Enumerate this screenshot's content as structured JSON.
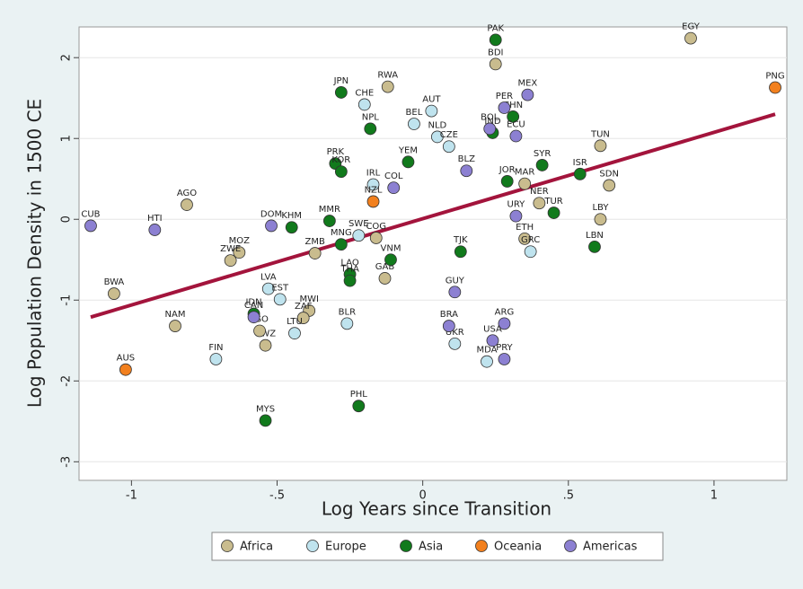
{
  "chart_data": {
    "type": "scatter",
    "x_label": "Log Years since Transition",
    "y_label": "Log Population Density in 1500 CE",
    "xlim": [
      -1.18,
      1.25
    ],
    "ylim": [
      -3.23,
      2.38
    ],
    "xticks": [
      -1,
      {
        "value": -0.5,
        "label": "-.5"
      },
      0,
      {
        "value": 0.5,
        "label": ".5"
      },
      1
    ],
    "yticks": [
      -3,
      -2,
      -1,
      0,
      1,
      2
    ],
    "grid": true,
    "legend": "bottom",
    "series": [
      {
        "name": "Africa",
        "color": "#c9bc8e",
        "labels": [
          "EGY",
          "BDI",
          "RWA",
          "TUN",
          "SDN",
          "LBY",
          "AGO",
          "MOZ",
          "ZWE",
          "BWA",
          "NAM",
          "MWI",
          "ZAF",
          "SWZ",
          "LSO",
          "GAB",
          "MAR",
          "ETH",
          "NER",
          "ZMB",
          "COG"
        ],
        "x": [
          0.92,
          0.25,
          -0.12,
          0.61,
          0.64,
          0.61,
          -0.81,
          -0.63,
          -0.66,
          -1.06,
          -0.85,
          -0.39,
          -0.41,
          -0.54,
          -0.56,
          -0.13,
          0.35,
          0.35,
          0.4,
          -0.37,
          -0.16
        ],
        "y": [
          2.24,
          1.92,
          1.64,
          0.91,
          0.42,
          0.0,
          0.18,
          -0.41,
          -0.51,
          -0.92,
          -1.32,
          -1.13,
          -1.22,
          -1.56,
          -1.38,
          -0.73,
          0.44,
          -0.24,
          0.2,
          -0.42,
          -0.23
        ]
      },
      {
        "name": "Europe",
        "color": "#bfe3ee",
        "labels": [
          "CHE",
          "AUT",
          "BEL",
          "NLD",
          "CZE",
          "IRL",
          "LVA",
          "EST",
          "LTU",
          "BLR",
          "FIN",
          "UKR",
          "MDA",
          "GRC",
          "SWE"
        ],
        "x": [
          -0.2,
          0.03,
          -0.03,
          0.05,
          0.09,
          -0.17,
          -0.53,
          -0.49,
          -0.44,
          -0.26,
          -0.71,
          0.11,
          0.22,
          0.37,
          -0.22
        ],
        "y": [
          1.42,
          1.34,
          1.18,
          1.02,
          0.9,
          0.43,
          -0.86,
          -0.99,
          -1.41,
          -1.29,
          -1.73,
          -1.54,
          -1.76,
          -0.4,
          -0.2
        ]
      },
      {
        "name": "Asia",
        "color": "#117a1c",
        "labels": [
          "PAK",
          "JPN",
          "NPL",
          "CHN",
          "PRK",
          "KOR",
          "YEM",
          "SYR",
          "ISR",
          "TUR",
          "LBN",
          "KHM",
          "MMR",
          "MNG",
          "LAO",
          "THA",
          "VNM",
          "MYS",
          "PHL",
          "IDN",
          "TJK",
          "JOR",
          "IND"
        ],
        "x": [
          0.25,
          -0.28,
          -0.18,
          0.31,
          -0.3,
          -0.28,
          -0.05,
          0.41,
          0.54,
          0.45,
          0.59,
          -0.45,
          -0.32,
          -0.28,
          -0.25,
          -0.25,
          -0.11,
          -0.54,
          -0.22,
          -0.58,
          0.13,
          0.29,
          0.24
        ],
        "y": [
          2.22,
          1.57,
          1.12,
          1.27,
          0.69,
          0.59,
          0.71,
          0.67,
          0.56,
          0.08,
          -0.34,
          -0.1,
          -0.02,
          -0.31,
          -0.68,
          -0.76,
          -0.5,
          -2.49,
          -2.31,
          -1.17,
          -0.4,
          0.47,
          1.07
        ]
      },
      {
        "name": "Oceania",
        "color": "#f2801e",
        "labels": [
          "PNG",
          "AUS",
          "NZL"
        ],
        "x": [
          1.21,
          -1.02,
          -0.17
        ],
        "y": [
          1.63,
          -1.86,
          0.22
        ]
      },
      {
        "name": "Americas",
        "color": "#8c80d2",
        "labels": [
          "MEX",
          "PER",
          "BOL",
          "ECU",
          "CUB",
          "HTI",
          "DOM",
          "GUY",
          "BRA",
          "ARG",
          "USA",
          "PRY",
          "CAN",
          "COL",
          "URY",
          "BLZ"
        ],
        "x": [
          0.36,
          0.28,
          0.23,
          0.32,
          -1.14,
          -0.92,
          -0.52,
          0.11,
          0.09,
          0.28,
          0.24,
          0.28,
          -0.58,
          -0.1,
          0.32,
          0.15
        ],
        "y": [
          1.54,
          1.38,
          1.12,
          1.03,
          -0.08,
          -0.13,
          -0.08,
          -0.9,
          -1.32,
          -1.29,
          -1.5,
          -1.73,
          -1.21,
          0.39,
          0.04,
          0.6
        ]
      }
    ],
    "fit": {
      "color": "#a3143c",
      "x": [
        -1.14,
        1.21
      ],
      "y": [
        -1.21,
        1.3
      ]
    }
  }
}
